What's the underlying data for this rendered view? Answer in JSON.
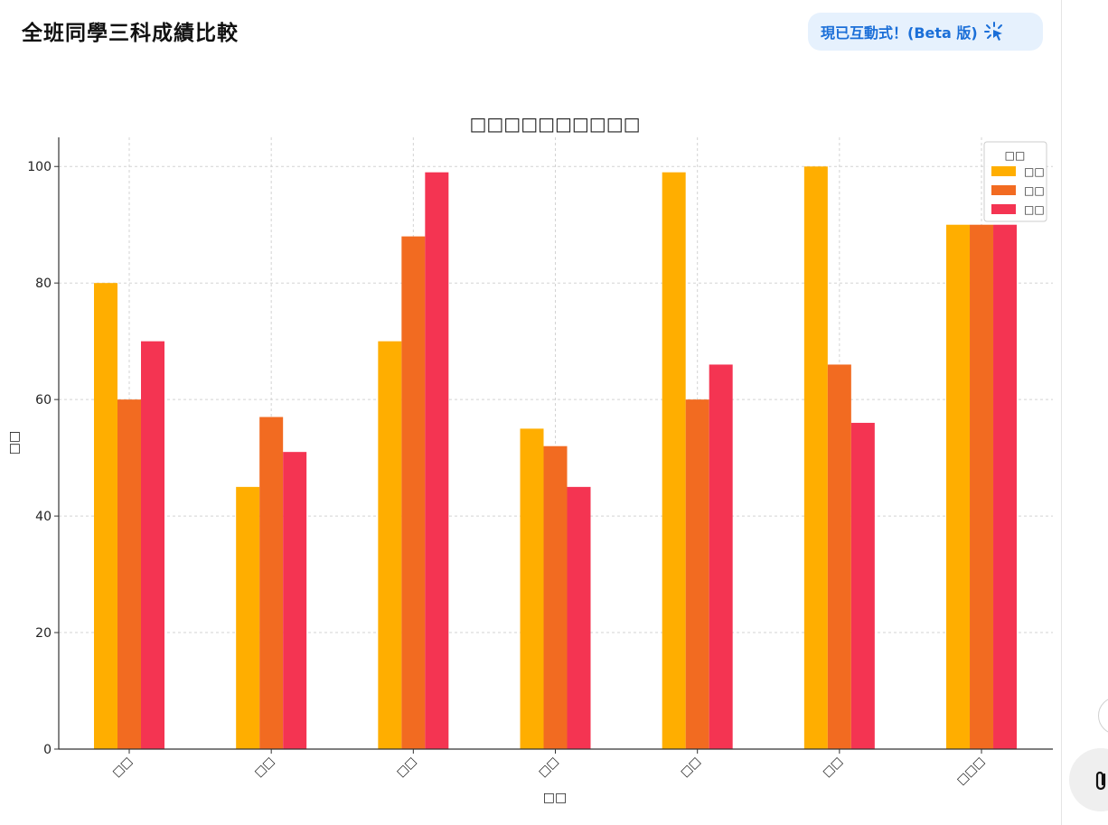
{
  "header": {
    "title": "全班同學三科成績比較",
    "badge_label": "現已互動式！(Beta 版)",
    "badge_icon": "sparkle-cursor-icon"
  },
  "side_panel": {
    "icons": [
      "round-button-icon",
      "attachment-clip-icon"
    ]
  },
  "chart_data": {
    "type": "bar",
    "title": "□□□□□□□□□□",
    "xlabel": "□□",
    "ylabel": "□□",
    "categories": [
      "□□",
      "□□",
      "□□",
      "□□",
      "□□",
      "□□",
      "□□□"
    ],
    "series": [
      {
        "name": "□□",
        "color": "#ffae00",
        "values": [
          80,
          45,
          70,
          55,
          99,
          100,
          90
        ]
      },
      {
        "name": "□□",
        "color": "#f26b21",
        "values": [
          60,
          57,
          88,
          52,
          60,
          66,
          90
        ]
      },
      {
        "name": "□□",
        "color": "#f43452",
        "values": [
          70,
          51,
          99,
          45,
          66,
          56,
          90
        ]
      }
    ],
    "legend": {
      "title": "□□",
      "position": "top-right"
    },
    "ylim": [
      0,
      105
    ],
    "yticks": [
      0,
      20,
      40,
      60,
      80,
      100
    ],
    "grid": true
  }
}
